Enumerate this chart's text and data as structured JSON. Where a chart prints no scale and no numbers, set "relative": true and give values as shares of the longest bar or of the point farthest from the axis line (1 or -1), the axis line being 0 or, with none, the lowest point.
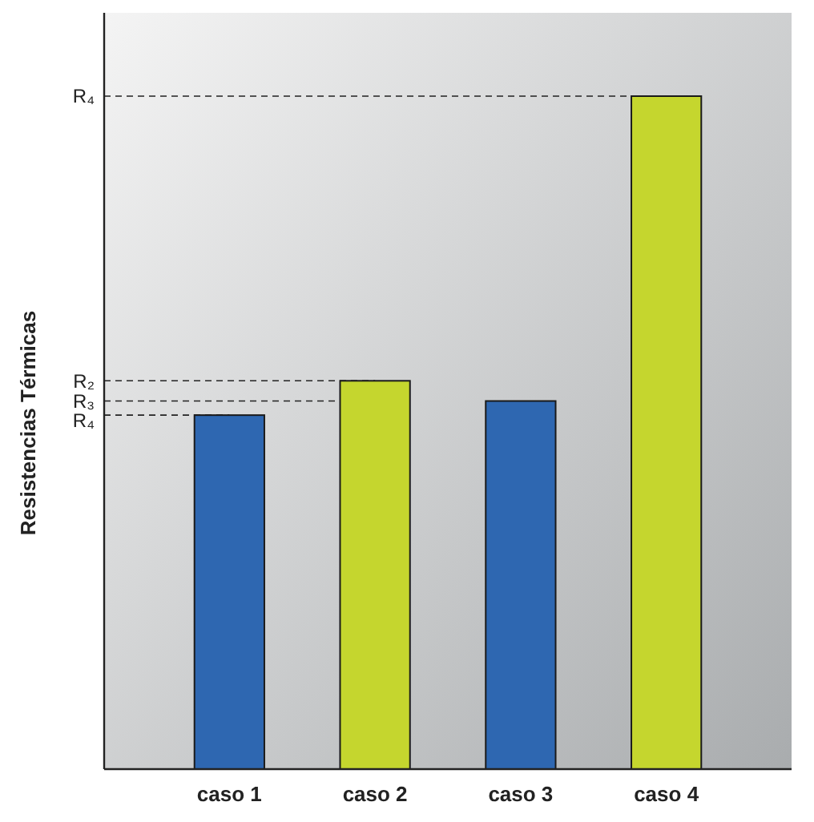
{
  "chart_data": {
    "type": "bar",
    "relative": true,
    "ylabel": "Resistencias Térmicas",
    "categories": [
      "caso 1",
      "caso 2",
      "caso 3",
      "caso 4"
    ],
    "values": [
      0.526,
      0.577,
      0.547,
      1
    ],
    "colors": [
      "#2e67b1",
      "#c5d62e",
      "#2e67b1",
      "#c5d62e"
    ],
    "ref_lines": [
      {
        "axis": "y",
        "value": 1,
        "label": "R₄",
        "line_style": "dashed"
      },
      {
        "axis": "y",
        "value": 0.577,
        "label": "R₂",
        "line_style": "dashed"
      },
      {
        "axis": "y",
        "value": 0.547,
        "label": "R₃",
        "line_style": "dashed"
      },
      {
        "axis": "y",
        "value": 0.526,
        "label": "R₄",
        "line_style": "dashed"
      }
    ]
  }
}
